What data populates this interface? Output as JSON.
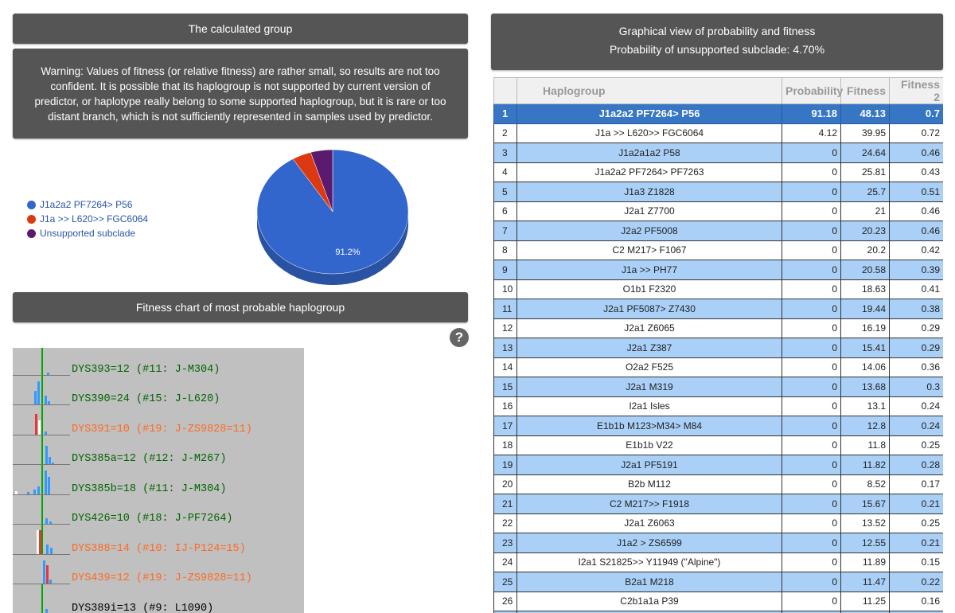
{
  "left": {
    "calc_title": "The calculated group",
    "warning": "Warning: Values of fitness (or relative fitness) are rather small, so results are not too confident. It is possible that its haplogroup is not supported by current version of predictor, or haplotype really belong to some supported haplogroup, but it is rare or too distant branch, which is not sufficiently represented in samples used by predictor.",
    "fitness_title": "Fitness chart of most probable haplogroup",
    "help_icon": "?"
  },
  "pie": {
    "label": "91.2%",
    "legend": [
      {
        "name": "J1a2a2 PF7264> P56",
        "color": "#3366cc"
      },
      {
        "name": "J1a >> L620>> FGC6064",
        "color": "#dc3912"
      },
      {
        "name": "Unsupported subclade",
        "color": "#5c1a6e"
      }
    ],
    "chart_data": {
      "type": "pie",
      "categories": [
        "J1a2a2 PF7264> P56",
        "J1a >> L620>> FGC6064",
        "Unsupported subclade"
      ],
      "values": [
        91.18,
        4.12,
        4.7
      ]
    }
  },
  "right": {
    "title": "Graphical view of probability and fitness",
    "subtitle": "Probability of unsupported subclade: 4.70%"
  },
  "table": {
    "headers": [
      "",
      "Haplogroup",
      "Probability",
      "Fitness",
      "Fitness 2"
    ],
    "rows": [
      [
        "1",
        "J1a2a2 PF7264> P56",
        "91.18",
        "48.13",
        "0.7"
      ],
      [
        "2",
        "J1a >> L620>> FGC6064",
        "4.12",
        "39.95",
        "0.72"
      ],
      [
        "3",
        "J1a2a1a2 P58",
        "0",
        "24.64",
        "0.46"
      ],
      [
        "4",
        "J1a2a2 PF7264> PF7263",
        "0",
        "25.81",
        "0.43"
      ],
      [
        "5",
        "J1a3 Z1828",
        "0",
        "25.7",
        "0.51"
      ],
      [
        "6",
        "J2a1 Z7700",
        "0",
        "21",
        "0.46"
      ],
      [
        "7",
        "J2a2 PF5008",
        "0",
        "20.23",
        "0.46"
      ],
      [
        "8",
        "C2 M217> F1067",
        "0",
        "20.2",
        "0.42"
      ],
      [
        "9",
        "J1a >> PH77",
        "0",
        "20.58",
        "0.39"
      ],
      [
        "10",
        "O1b1 F2320",
        "0",
        "18.63",
        "0.41"
      ],
      [
        "11",
        "J2a1 PF5087> Z7430",
        "0",
        "19.44",
        "0.38"
      ],
      [
        "12",
        "J2a1 Z6065",
        "0",
        "16.19",
        "0.29"
      ],
      [
        "13",
        "J2a1 Z387",
        "0",
        "15.41",
        "0.29"
      ],
      [
        "14",
        "O2a2 F525",
        "0",
        "14.06",
        "0.36"
      ],
      [
        "15",
        "J2a1 M319",
        "0",
        "13.68",
        "0.3"
      ],
      [
        "16",
        "I2a1 Isles",
        "0",
        "13.1",
        "0.24"
      ],
      [
        "17",
        "E1b1b M123>M34> M84",
        "0",
        "12.8",
        "0.24"
      ],
      [
        "18",
        "E1b1b V22",
        "0",
        "11.8",
        "0.25"
      ],
      [
        "19",
        "J2a1 PF5191",
        "0",
        "11.82",
        "0.28"
      ],
      [
        "20",
        "B2b M112",
        "0",
        "8.52",
        "0.17"
      ],
      [
        "21",
        "C2 M217>> F1918",
        "0",
        "15.67",
        "0.21"
      ],
      [
        "22",
        "J2a1 Z6063",
        "0",
        "13.52",
        "0.25"
      ],
      [
        "23",
        "J1a2 > ZS6599",
        "0",
        "12.55",
        "0.21"
      ],
      [
        "24",
        "I2a1 S21825>> Y11949 (\"Alpine\")",
        "0",
        "11.89",
        "0.15"
      ],
      [
        "25",
        "B2a1 M218",
        "0",
        "11.47",
        "0.22"
      ],
      [
        "26",
        "C2b1a1a P39",
        "0",
        "11.25",
        "0.16"
      ],
      [
        "",
        "",
        "",
        "",
        ""
      ]
    ]
  },
  "fitness_rows": [
    {
      "text": "DYS393=12 (#11: J-M304)",
      "color": "#006400"
    },
    {
      "text": "DYS390=24 (#15: J-L620)",
      "color": "#006400"
    },
    {
      "text": "DYS391=10 (#19: J-ZS9828=11)",
      "color": "#ff6a22"
    },
    {
      "text": "DYS385a=12 (#12: J-M267)",
      "color": "#006400"
    },
    {
      "text": "DYS385b=18 (#11: J-M304)",
      "color": "#006400"
    },
    {
      "text": "DYS426=10 (#18: J-PF7264)",
      "color": "#006400"
    },
    {
      "text": "DYS388=14 (#10: IJ-P124=15)",
      "color": "#ff6a22"
    },
    {
      "text": "DYS439=12 (#19: J-ZS9828=11)",
      "color": "#ff6a22"
    },
    {
      "text": "DYS389i=13 (#9: L1090)",
      "color": "#000000"
    }
  ]
}
